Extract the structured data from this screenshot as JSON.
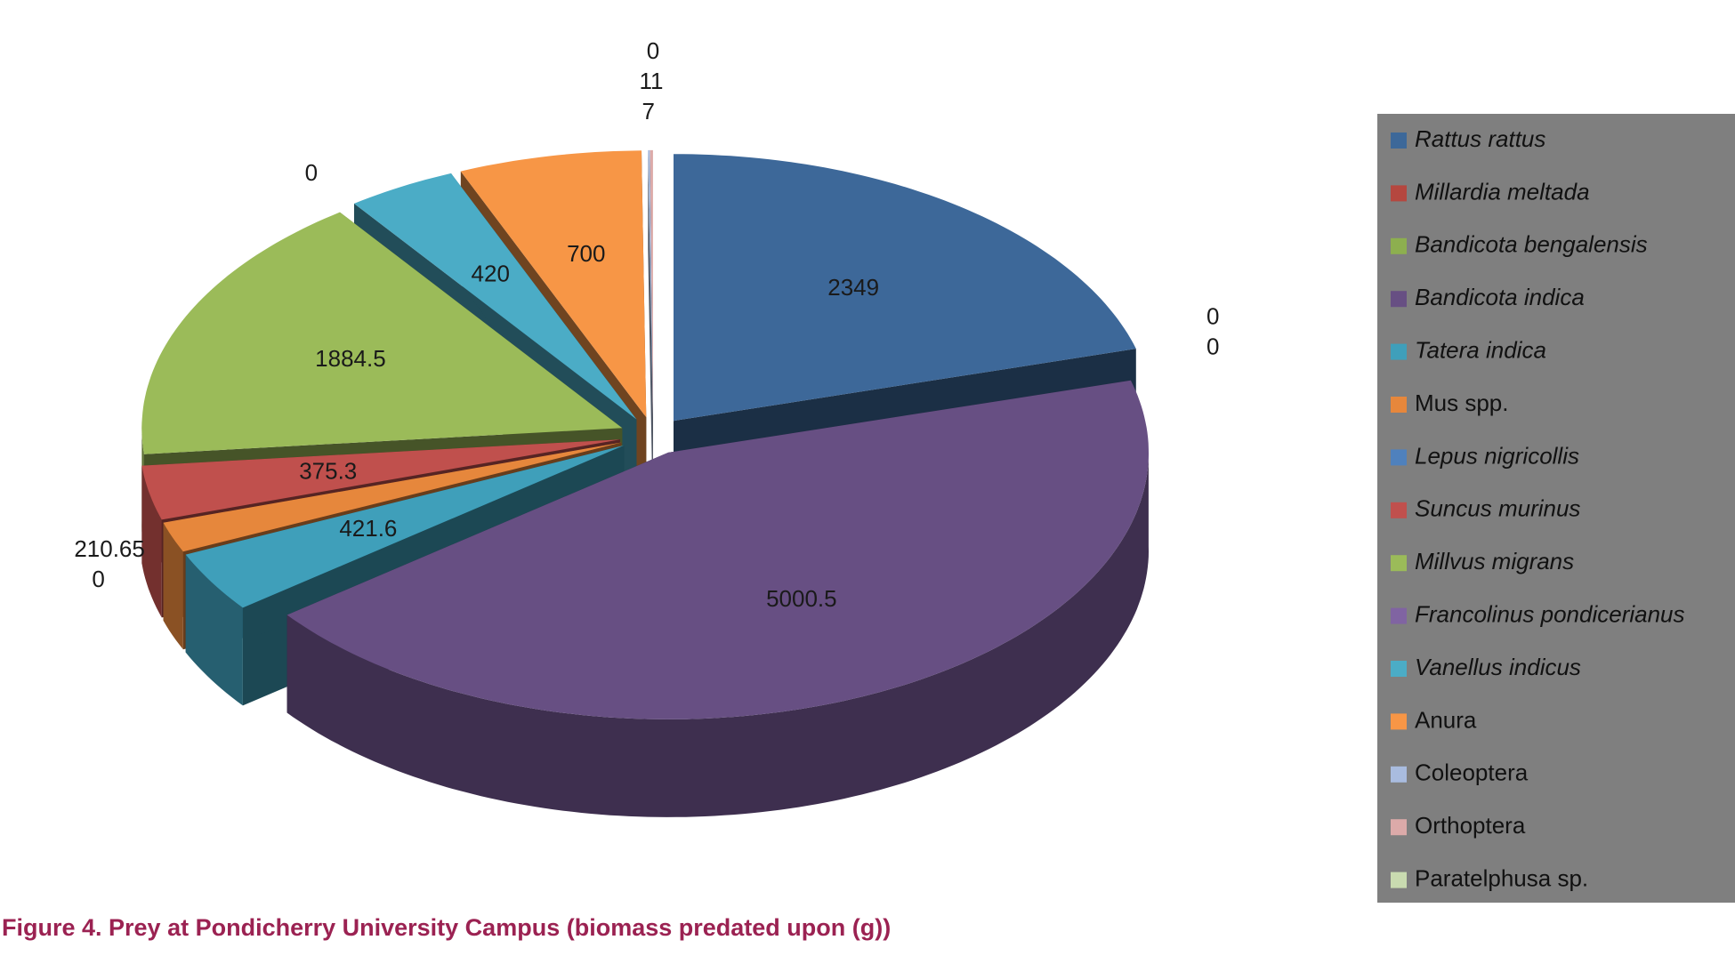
{
  "chart_data": {
    "type": "pie",
    "title": "Figure 4. Prey at Pondicherry University Campus (biomass predated upon (g))",
    "categories": [
      "Rattus rattus",
      "Millardia meltada",
      "Bandicota bengalensis",
      "Bandicota indica",
      "Tatera indica",
      "Mus spp.",
      "Lepus nigricollis",
      "Suncus murinus",
      "Millvus migrans",
      "Francolinus pondicerianus",
      "Vanellus indicus",
      "Anura",
      "Coleoptera",
      "Orthoptera",
      "Paratelphusa sp."
    ],
    "values": [
      2349,
      0,
      0,
      5000.5,
      421.6,
      210.65,
      0,
      375.3,
      1884.5,
      0,
      420,
      700,
      7,
      11,
      0
    ],
    "colors": [
      "#3d6899",
      "#b5473f",
      "#8daf4f",
      "#674f83",
      "#3f9fba",
      "#e6873c",
      "#4f81bd",
      "#c0504d",
      "#9bbb59",
      "#8064a2",
      "#4bacc6",
      "#f79646",
      "#a9bcdf",
      "#dcaaa9",
      "#c9dbb0"
    ],
    "legend_italic": [
      true,
      true,
      true,
      true,
      true,
      false,
      true,
      true,
      true,
      true,
      true,
      false,
      false,
      false,
      false
    ],
    "legend": "right"
  }
}
